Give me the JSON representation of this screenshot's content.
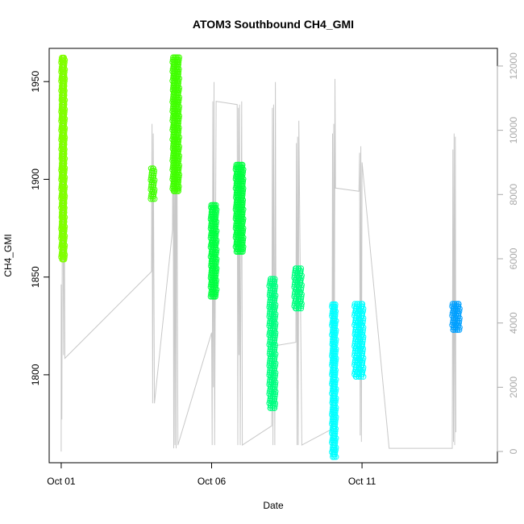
{
  "chart_data": {
    "type": "scatter",
    "title": "ATOM3 Southbound CH4_GMI",
    "xlabel": "Date",
    "ylabel": "CH4_GMI",
    "x_ticks": [
      {
        "day": 1,
        "label": "Oct 01"
      },
      {
        "day": 6,
        "label": "Oct 06"
      },
      {
        "day": 11,
        "label": "Oct 11"
      }
    ],
    "y_ticks": [
      1800,
      1850,
      1900,
      1950
    ],
    "y2_ticks": [
      0,
      2000,
      4000,
      6000,
      8000,
      10000,
      12000
    ],
    "xlim_days": [
      0.6,
      15.5
    ],
    "ylim": [
      1755,
      1967
    ],
    "y2lim": [
      -350,
      12550
    ],
    "right_axis_color": "#aaaaaa",
    "altitude_line_color": "#c8c8c8",
    "altitude_trace": [
      [
        1.0,
        0
      ],
      [
        1.0,
        5200
      ],
      [
        1.02,
        1000
      ],
      [
        1.05,
        12300
      ],
      [
        1.08,
        3000
      ],
      [
        1.1,
        8500
      ],
      [
        1.12,
        2900
      ],
      [
        4.0,
        5600
      ],
      [
        4.02,
        10200
      ],
      [
        4.04,
        1500
      ],
      [
        4.06,
        9900
      ],
      [
        4.08,
        5400
      ],
      [
        4.1,
        1500
      ],
      [
        4.7,
        6900
      ],
      [
        4.72,
        12000
      ],
      [
        4.74,
        100
      ],
      [
        4.76,
        9800
      ],
      [
        4.78,
        200
      ],
      [
        4.8,
        11600
      ],
      [
        4.82,
        100
      ],
      [
        4.84,
        12200
      ],
      [
        4.86,
        5300
      ],
      [
        4.88,
        200
      ],
      [
        6.0,
        3700
      ],
      [
        6.02,
        200
      ],
      [
        6.04,
        10900
      ],
      [
        6.06,
        2000
      ],
      [
        6.08,
        11500
      ],
      [
        6.1,
        200
      ],
      [
        6.15,
        10900
      ],
      [
        6.85,
        10800
      ],
      [
        6.87,
        200
      ],
      [
        6.89,
        10700
      ],
      [
        6.91,
        3000
      ],
      [
        6.93,
        10800
      ],
      [
        6.95,
        200
      ],
      [
        7.0,
        10900
      ],
      [
        7.02,
        200
      ],
      [
        8.0,
        800
      ],
      [
        8.02,
        10700
      ],
      [
        8.04,
        200
      ],
      [
        8.06,
        10800
      ],
      [
        8.1,
        200
      ],
      [
        8.12,
        11500
      ],
      [
        8.14,
        3300
      ],
      [
        8.8,
        3400
      ],
      [
        8.82,
        9600
      ],
      [
        8.84,
        200
      ],
      [
        8.86,
        9800
      ],
      [
        8.88,
        200
      ],
      [
        8.9,
        10300
      ],
      [
        9.0,
        200
      ],
      [
        10.0,
        700
      ],
      [
        10.02,
        9900
      ],
      [
        10.04,
        200
      ],
      [
        10.06,
        10200
      ],
      [
        10.08,
        3000
      ],
      [
        10.1,
        11600
      ],
      [
        10.12,
        8200
      ],
      [
        10.9,
        8100
      ],
      [
        10.92,
        9300
      ],
      [
        10.94,
        500
      ],
      [
        10.96,
        9500
      ],
      [
        10.98,
        300
      ],
      [
        11.0,
        9000
      ],
      [
        11.9,
        100
      ],
      [
        14.0,
        100
      ],
      [
        14.02,
        9400
      ],
      [
        14.04,
        300
      ],
      [
        14.06,
        9900
      ],
      [
        14.08,
        200
      ],
      [
        14.1,
        9800
      ],
      [
        14.12,
        600
      ]
    ],
    "series": [
      {
        "color": "#80ff00",
        "x": [
          1.0,
          1.02,
          1.04,
          1.06,
          1.08
        ],
        "y_min": 1859,
        "y_max": 1963
      },
      {
        "color": "#40ff00",
        "x": [
          3.98,
          4.02,
          4.06
        ],
        "y_min": 1890,
        "y_max": 1906
      },
      {
        "color": "#40ff00",
        "x": [
          4.7,
          4.73,
          4.76,
          4.79,
          4.82,
          4.85,
          4.88
        ],
        "y_min": 1894,
        "y_max": 1963
      },
      {
        "color": "#00ff40",
        "x": [
          5.97,
          6.0,
          6.03,
          6.06,
          6.09,
          6.12
        ],
        "y_min": 1840,
        "y_max": 1887
      },
      {
        "color": "#00ff40",
        "x": [
          6.8,
          6.83,
          6.86,
          6.89,
          6.92,
          6.95,
          6.98,
          7.01
        ],
        "y_min": 1863,
        "y_max": 1908
      },
      {
        "color": "#00ff80",
        "x": [
          7.92,
          7.96,
          8.0,
          8.04,
          8.08
        ],
        "y_min": 1783,
        "y_max": 1850
      },
      {
        "color": "#00ff80",
        "x": [
          8.75,
          8.8,
          8.85,
          8.9,
          8.95
        ],
        "y_min": 1834,
        "y_max": 1855
      },
      {
        "color": "#00ffff",
        "x": [
          10.0,
          10.03,
          10.06,
          10.09
        ],
        "y_min": 1758,
        "y_max": 1837
      },
      {
        "color": "#00ffff",
        "x": [
          10.75,
          10.8,
          10.85,
          10.9,
          10.95,
          11.0
        ],
        "y_min": 1799,
        "y_max": 1837
      },
      {
        "color": "#00a0ff",
        "x": [
          14.0,
          14.04,
          14.08,
          14.12,
          14.16,
          14.2
        ],
        "y_min": 1823,
        "y_max": 1837
      }
    ]
  }
}
